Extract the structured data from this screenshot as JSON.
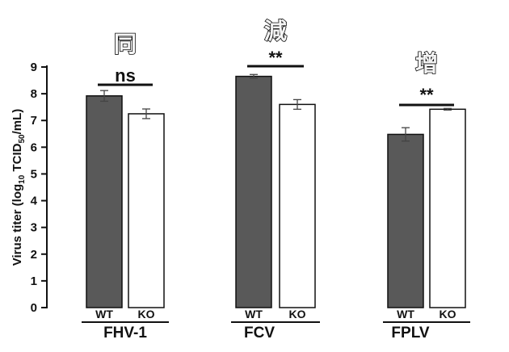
{
  "chart_data": {
    "type": "bar",
    "ylabel": "Virus titer (log10 TCID50/mL)",
    "ylabel_parts": [
      "Virus titer (log",
      "10",
      " TCID",
      "50",
      "/mL)"
    ],
    "ylim": [
      0,
      9
    ],
    "yticks": [
      "0",
      "1",
      "2",
      "3",
      "4",
      "5",
      "6",
      "7",
      "8",
      "9"
    ],
    "grid": false,
    "colors": {
      "WT": "#595959",
      "KO": "#ffffff",
      "edge": "#111111"
    },
    "groups": [
      {
        "name": "FHV-1",
        "annotation": "同",
        "significance": "ns",
        "bars": [
          {
            "label": "WT",
            "value": 7.92,
            "error": 0.2
          },
          {
            "label": "KO",
            "value": 7.25,
            "error": 0.18
          }
        ]
      },
      {
        "name": "FCV",
        "annotation": "減",
        "significance": "**",
        "bars": [
          {
            "label": "WT",
            "value": 8.65,
            "error": 0.07
          },
          {
            "label": "KO",
            "value": 7.6,
            "error": 0.18
          }
        ]
      },
      {
        "name": "FPLV",
        "annotation": "增",
        "significance": "**",
        "bars": [
          {
            "label": "WT",
            "value": 6.48,
            "error": 0.25
          },
          {
            "label": "KO",
            "value": 7.42,
            "error": 0.03
          }
        ]
      }
    ]
  }
}
